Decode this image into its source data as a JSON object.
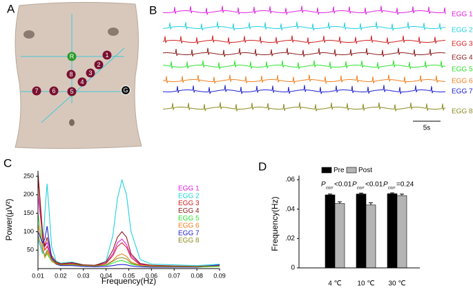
{
  "panel_labels": [
    "A",
    "B",
    "C",
    "D"
  ],
  "panel_a": {
    "electrodes": [
      "1",
      "2",
      "3",
      "4",
      "5",
      "6",
      "7",
      "8"
    ],
    "reference": "R",
    "ground": "G"
  },
  "panel_b": {
    "traces": [
      {
        "name": "EGG 1",
        "color": "#e020e0"
      },
      {
        "name": "EGG 2",
        "color": "#20d0e0"
      },
      {
        "name": "EGG 3",
        "color": "#d02020"
      },
      {
        "name": "EGG 4",
        "color": "#8b1a1a"
      },
      {
        "name": "EGG 5",
        "color": "#30e030"
      },
      {
        "name": "EGG 6",
        "color": "#f08020"
      },
      {
        "name": "EGG 7",
        "color": "#2020d0"
      },
      {
        "name": "EGG 8",
        "color": "#8a8a20"
      }
    ],
    "scale_bar": "5s"
  },
  "chart_data": [
    {
      "type": "line",
      "xlabel": "Frequency(Hz)",
      "ylabel": "Power(μV²)",
      "x": [
        0.01,
        0.012,
        0.013,
        0.014,
        0.015,
        0.016,
        0.018,
        0.02,
        0.025,
        0.03,
        0.035,
        0.04,
        0.043,
        0.045,
        0.047,
        0.049,
        0.051,
        0.055,
        0.06,
        0.07,
        0.08,
        0.09
      ],
      "xlim": [
        0.01,
        0.09
      ],
      "xticks": [
        0.01,
        0.02,
        0.03,
        0.04,
        0.05,
        0.06,
        0.07,
        0.08,
        0.09
      ],
      "ylim": [
        0,
        265
      ],
      "yticks": [
        50,
        100,
        150,
        200,
        250
      ],
      "series": [
        {
          "name": "EGG 1",
          "color": "#e020e0",
          "values": [
            200,
            90,
            60,
            70,
            50,
            30,
            15,
            12,
            14,
            10,
            8,
            15,
            40,
            70,
            80,
            65,
            35,
            12,
            8,
            6,
            5,
            8
          ]
        },
        {
          "name": "EGG 2",
          "color": "#20d0e0",
          "values": [
            80,
            40,
            150,
            230,
            150,
            60,
            20,
            15,
            18,
            10,
            8,
            20,
            90,
            190,
            240,
            200,
            100,
            25,
            12,
            10,
            8,
            12
          ]
        },
        {
          "name": "EGG 3",
          "color": "#d02020",
          "values": [
            250,
            80,
            50,
            60,
            45,
            28,
            15,
            12,
            13,
            9,
            8,
            14,
            35,
            60,
            70,
            58,
            30,
            10,
            7,
            5,
            5,
            7
          ]
        },
        {
          "name": "EGG 4",
          "color": "#8b1a1a",
          "values": [
            260,
            100,
            60,
            85,
            60,
            35,
            18,
            13,
            16,
            10,
            9,
            18,
            50,
            85,
            100,
            85,
            40,
            14,
            9,
            7,
            6,
            9
          ]
        },
        {
          "name": "EGG 5",
          "color": "#30e030",
          "values": [
            150,
            60,
            30,
            40,
            30,
            20,
            12,
            10,
            10,
            8,
            7,
            9,
            15,
            20,
            22,
            18,
            12,
            8,
            6,
            5,
            4,
            6
          ]
        },
        {
          "name": "EGG 6",
          "color": "#f08020",
          "values": [
            120,
            60,
            30,
            45,
            35,
            22,
            12,
            10,
            11,
            8,
            7,
            10,
            22,
            35,
            40,
            33,
            18,
            9,
            7,
            5,
            5,
            7
          ]
        },
        {
          "name": "EGG 7",
          "color": "#2020d0",
          "values": [
            100,
            70,
            80,
            115,
            70,
            30,
            12,
            8,
            8,
            6,
            5,
            6,
            8,
            10,
            11,
            10,
            7,
            5,
            4,
            4,
            4,
            10
          ]
        },
        {
          "name": "EGG 8",
          "color": "#8a8a20",
          "values": [
            90,
            50,
            35,
            50,
            40,
            25,
            13,
            10,
            12,
            8,
            7,
            10,
            20,
            28,
            30,
            26,
            15,
            8,
            6,
            5,
            5,
            7
          ]
        }
      ]
    },
    {
      "type": "bar",
      "ylabel": "Frequency(Hz)",
      "categories": [
        "4 ℃",
        "10 ℃",
        "30 ℃"
      ],
      "ylim": [
        0,
        0.06
      ],
      "yticks": [
        0,
        {
          "value": 0.02,
          "label": ".02"
        },
        {
          "value": 0.04,
          "label": ".04"
        },
        {
          "value": 0.06,
          "label": ".06"
        }
      ],
      "series": [
        {
          "name": "Pre",
          "color": "#000000",
          "values": [
            0.0497,
            0.0503,
            0.0505
          ],
          "errors": [
            0.0006,
            0.0006,
            0.0006
          ]
        },
        {
          "name": "Post",
          "color": "#b4b4b4",
          "values": [
            0.0438,
            0.0428,
            0.0492
          ],
          "errors": [
            0.0012,
            0.0015,
            0.001
          ]
        }
      ],
      "annotations": [
        {
          "p": "P",
          "sub": "corr",
          "rest": "<0.01"
        },
        {
          "p": "P",
          "sub": "corr",
          "rest": "<0.01"
        },
        {
          "p": "P",
          "sub": "corr",
          "rest": "=0.24"
        }
      ]
    }
  ]
}
